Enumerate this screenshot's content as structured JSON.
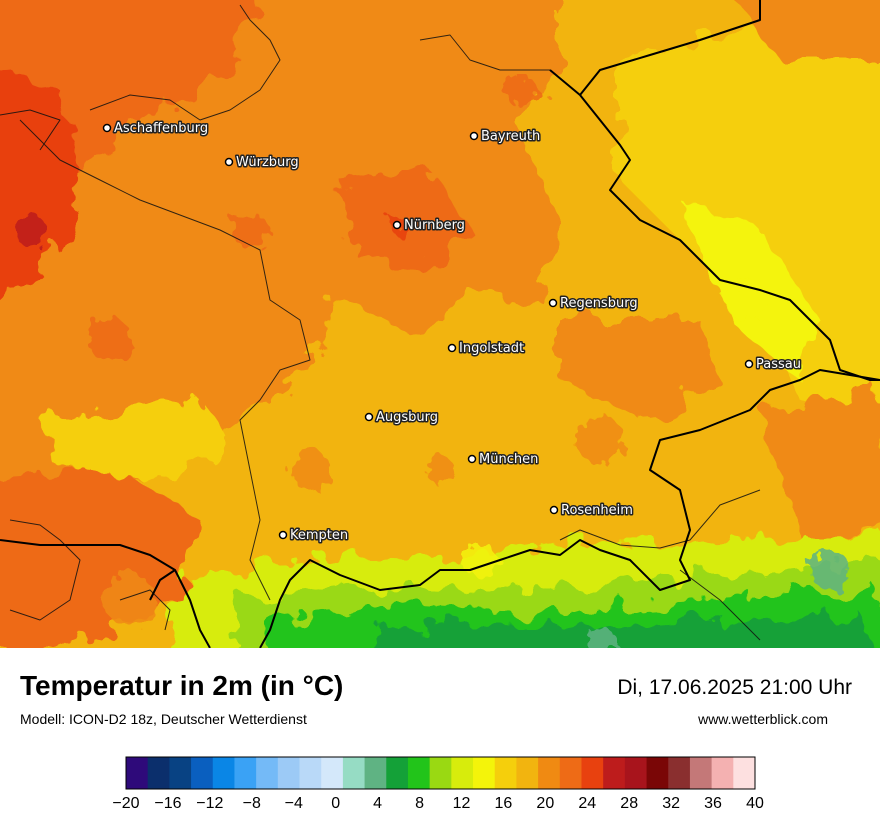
{
  "map": {
    "cities": [
      {
        "name": "Aschaffenburg"
      },
      {
        "name": "Würzburg"
      },
      {
        "name": "Bayreuth"
      },
      {
        "name": "Nürnberg"
      },
      {
        "name": "Regensburg"
      },
      {
        "name": "Ingolstadt"
      },
      {
        "name": "Passau"
      },
      {
        "name": "Augsburg"
      },
      {
        "name": "München"
      },
      {
        "name": "Rosenheim"
      },
      {
        "name": "Kempten"
      }
    ]
  },
  "footer": {
    "title": "Temperatur in 2m (in °C)",
    "model": "Modell: ICON-D2 18z, Deutscher Wetterdienst",
    "datetime": "Di, 17.06.2025 21:00 Uhr",
    "website": "www.wetterblick.com"
  },
  "legend": {
    "colors": [
      "#2e0a7a",
      "#0b2f6c",
      "#084283",
      "#0a5fbf",
      "#0a86e6",
      "#3aa2f5",
      "#74baf7",
      "#9ccaf6",
      "#b9d9f8",
      "#d4e8fa",
      "#96dcc4",
      "#5fb383",
      "#14a138",
      "#22c41a",
      "#9ad912",
      "#d7ec0c",
      "#f4f40a",
      "#f5cf0c",
      "#f2b40f",
      "#f08a12",
      "#ee6b16",
      "#e8410f",
      "#bd1c1c",
      "#a8141c",
      "#7a0606",
      "#8a2f2f",
      "#c47878",
      "#f4b1b1",
      "#fde0e0"
    ],
    "tick_labels": [
      "−20",
      "−16",
      "−12",
      "−8",
      "−4",
      "0",
      "4",
      "8",
      "12",
      "16",
      "20",
      "24",
      "28",
      "32",
      "36",
      "40"
    ]
  }
}
